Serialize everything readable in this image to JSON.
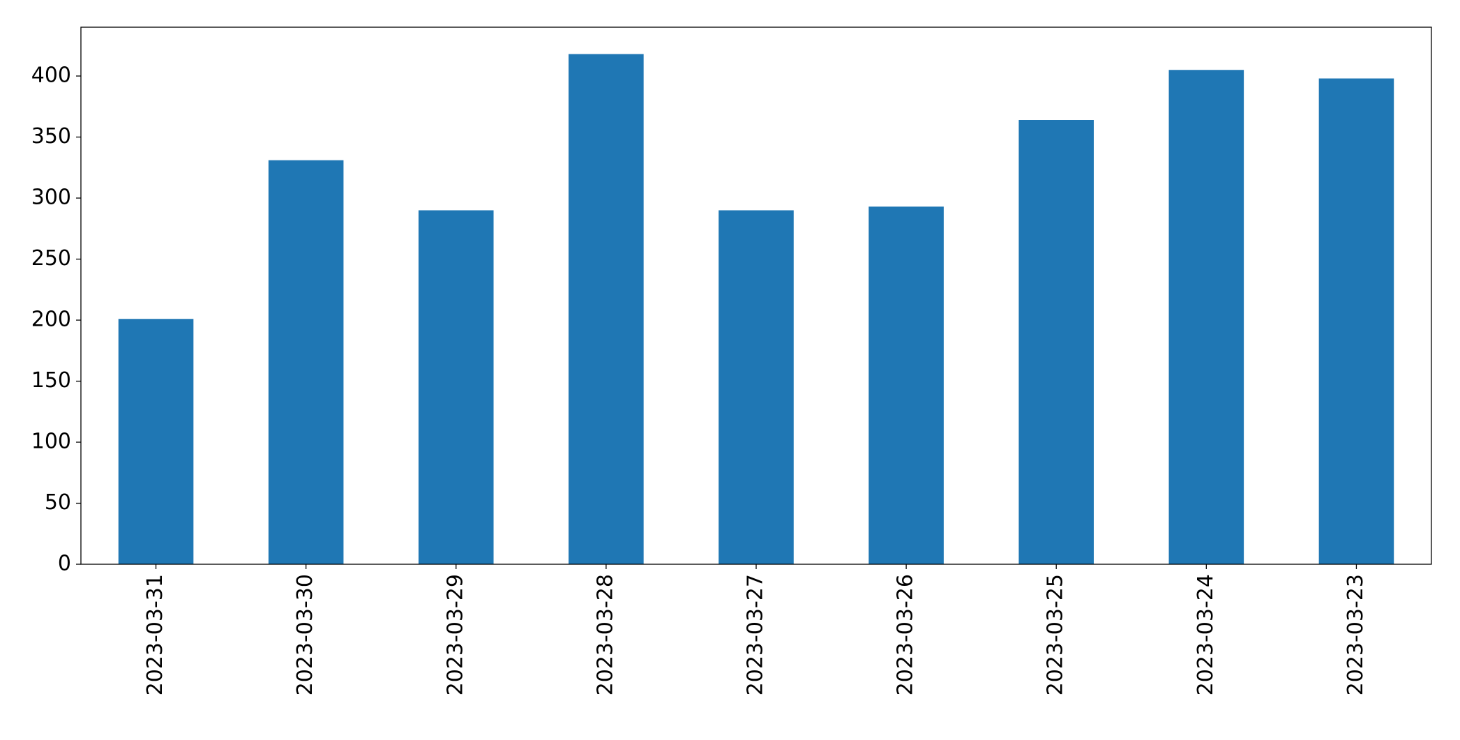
{
  "chart_data": {
    "type": "bar",
    "categories": [
      "2023-03-31",
      "2023-03-30",
      "2023-03-29",
      "2023-03-28",
      "2023-03-27",
      "2023-03-26",
      "2023-03-25",
      "2023-03-24",
      "2023-03-23"
    ],
    "values": [
      201,
      331,
      290,
      418,
      290,
      293,
      364,
      405,
      398
    ],
    "color": "#1f77b4",
    "ylim": [
      0,
      440
    ],
    "yticks": [
      0,
      50,
      100,
      150,
      200,
      250,
      300,
      350,
      400
    ],
    "grid": false
  }
}
